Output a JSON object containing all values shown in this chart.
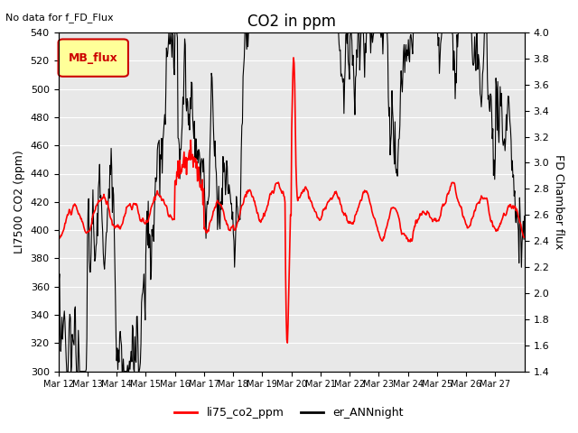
{
  "title": "CO2 in ppm",
  "top_left_text": "No data for f_FD_Flux",
  "legend_box_text": "MB_flux",
  "xlabel": "",
  "ylabel_left": "LI7500 CO2 (ppm)",
  "ylabel_right": "FD Chamber flux",
  "ylim_left": [
    300,
    540
  ],
  "ylim_right": [
    1.4,
    4.0
  ],
  "yticks_left": [
    300,
    320,
    340,
    360,
    380,
    400,
    420,
    440,
    460,
    480,
    500,
    520,
    540
  ],
  "yticks_right": [
    1.4,
    1.6,
    1.8,
    2.0,
    2.2,
    2.4,
    2.6,
    2.8,
    3.0,
    3.2,
    3.4,
    3.6,
    3.8,
    4.0
  ],
  "xtick_labels": [
    "Mar 12",
    "Mar 13",
    "Mar 14",
    "Mar 15",
    "Mar 16",
    "Mar 17",
    "Mar 18",
    "Mar 19",
    "Mar 20",
    "Mar 21",
    "Mar 22",
    "Mar 23",
    "Mar 24",
    "Mar 25",
    "Mar 26",
    "Mar 27"
  ],
  "line1_color": "#ff0000",
  "line2_color": "#000000",
  "line1_label": "li75_co2_ppm",
  "line2_label": "er_ANNnight",
  "background_color": "#e8e8e8",
  "axes_bg_color": "#e8e8e8",
  "grid_color": "#ffffff",
  "legend_box_color": "#ffff99",
  "legend_box_edge_color": "#cc0000",
  "title_fontsize": 12,
  "label_fontsize": 9,
  "tick_fontsize": 8,
  "n_days": 16,
  "pts_per_day": 48
}
